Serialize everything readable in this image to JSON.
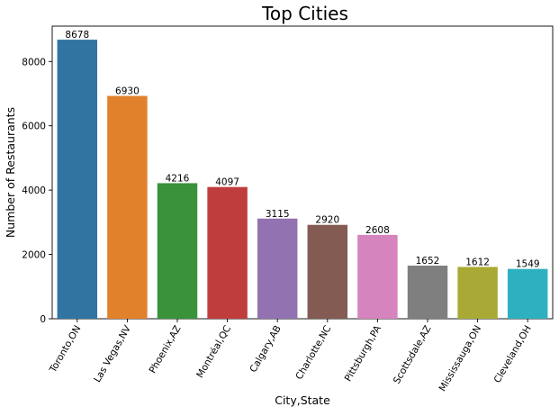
{
  "chart_data": {
    "type": "bar",
    "title": "Top Cities",
    "xlabel": "City,State",
    "ylabel": "Number of Restaurants",
    "ylim": [
      0,
      9100
    ],
    "yticks": [
      0,
      2000,
      4000,
      6000,
      8000
    ],
    "grid": false,
    "categories": [
      "Toronto,ON",
      "Las Vegas,NV",
      "Phoenix,AZ",
      "Montréal,QC",
      "Calgary,AB",
      "Charlotte,NC",
      "Pittsburgh,PA",
      "Scottsdale,AZ",
      "Mississauga,ON",
      "Cleveland,OH"
    ],
    "values": [
      8678,
      6930,
      4216,
      4097,
      3115,
      2920,
      2608,
      1652,
      1612,
      1549
    ],
    "colors": [
      "#3274a1",
      "#e1812c",
      "#3a923a",
      "#c03d3e",
      "#9372b2",
      "#845b53",
      "#d684bd",
      "#7f7f7f",
      "#a9aa35",
      "#2eb0c1"
    ]
  }
}
